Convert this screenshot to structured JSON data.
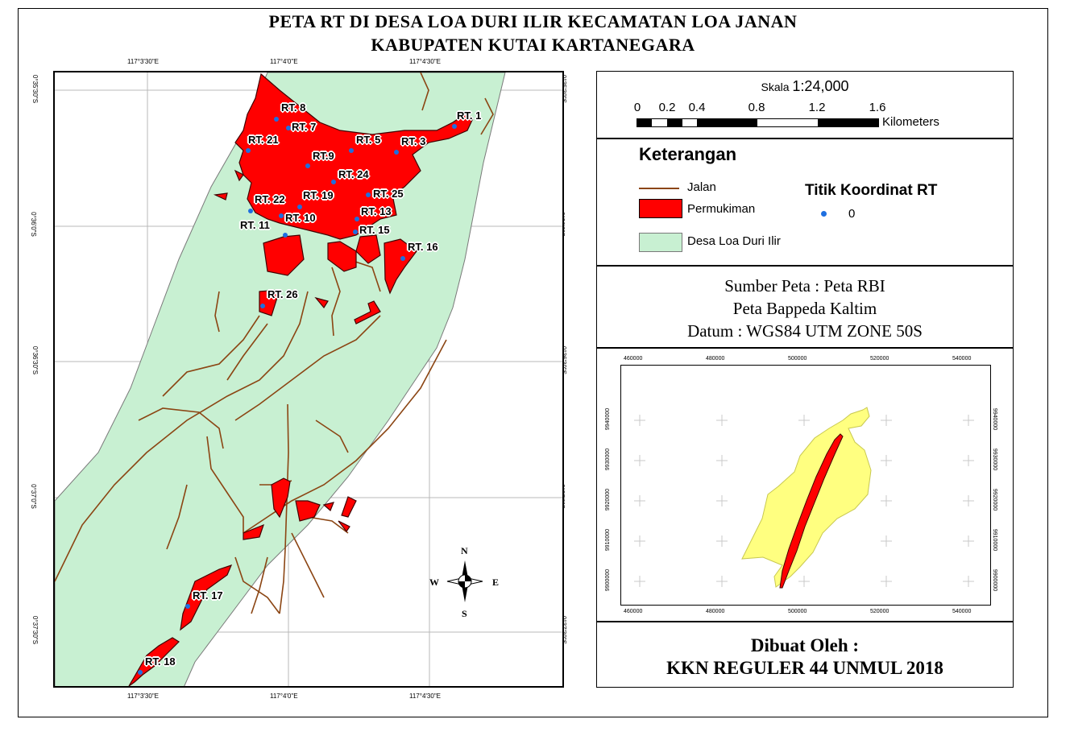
{
  "title": {
    "line1": "PETA RT DI DESA LOA DURI ILIR KECAMATAN LOA JANAN",
    "line2": "KABUPATEN KUTAI KARTANEGARA"
  },
  "map": {
    "lon_labels": [
      "117°3'30\"E",
      "117°4'0\"E",
      "117°4'30\"E"
    ],
    "lat_labels": [
      "0°35'30\"S",
      "0°36'0\"S",
      "0°36'30\"S",
      "0°37'0\"S",
      "0°37'30\"S"
    ],
    "rt_labels": [
      {
        "id": "rt8",
        "text": "RT. 8"
      },
      {
        "id": "rt7",
        "text": "RT. 7"
      },
      {
        "id": "rt1",
        "text": "RT. 1"
      },
      {
        "id": "rt21",
        "text": "RT. 21"
      },
      {
        "id": "rt5",
        "text": "RT. 5"
      },
      {
        "id": "rt3",
        "text": "RT. 3"
      },
      {
        "id": "rt9",
        "text": "RT.9"
      },
      {
        "id": "rt24",
        "text": "RT. 24"
      },
      {
        "id": "rt19",
        "text": "RT. 19"
      },
      {
        "id": "rt25",
        "text": "RT. 25"
      },
      {
        "id": "rt22",
        "text": "RT. 22"
      },
      {
        "id": "rt13",
        "text": "RT. 13"
      },
      {
        "id": "rt10",
        "text": "RT. 10"
      },
      {
        "id": "rt11",
        "text": "RT. 11"
      },
      {
        "id": "rt15",
        "text": "RT. 15"
      },
      {
        "id": "rt16",
        "text": "RT. 16"
      },
      {
        "id": "rt26",
        "text": "RT. 26"
      },
      {
        "id": "rt17",
        "text": "RT. 17"
      },
      {
        "id": "rt18",
        "text": "RT. 18"
      }
    ],
    "compass": {
      "n": "N",
      "s": "S",
      "e": "E",
      "w": "W"
    }
  },
  "scale": {
    "label": "Skala",
    "ratio": "1:24,000",
    "ticks": [
      "0",
      "0.2",
      "0.4",
      "0.8",
      "1.2",
      "1.6"
    ],
    "unit": "Kilometers"
  },
  "legend": {
    "title": "Keterangan",
    "road": "Jalan",
    "settlement": "Permukiman",
    "village": "Desa Loa Duri Ilir",
    "point_title": "Titik Koordinat RT",
    "point_value": "0",
    "colors": {
      "road": "#8b4513",
      "settlement": "#ff0000",
      "village": "#c8f0d2",
      "point": "#1e6fe0"
    }
  },
  "source": {
    "line1": "Sumber Peta : Peta RBI",
    "line2": "Peta Bappeda Kaltim",
    "line3": "Datum : WGS84 UTM ZONE 50S"
  },
  "inset": {
    "x_labels": [
      "460000",
      "480000",
      "500000",
      "520000",
      "540000"
    ],
    "y_labels": [
      "9940000",
      "9930000",
      "9920000",
      "9910000",
      "9900000"
    ]
  },
  "credit": {
    "line1": "Dibuat Oleh :",
    "line2": "KKN REGULER 44 UNMUL 2018"
  }
}
